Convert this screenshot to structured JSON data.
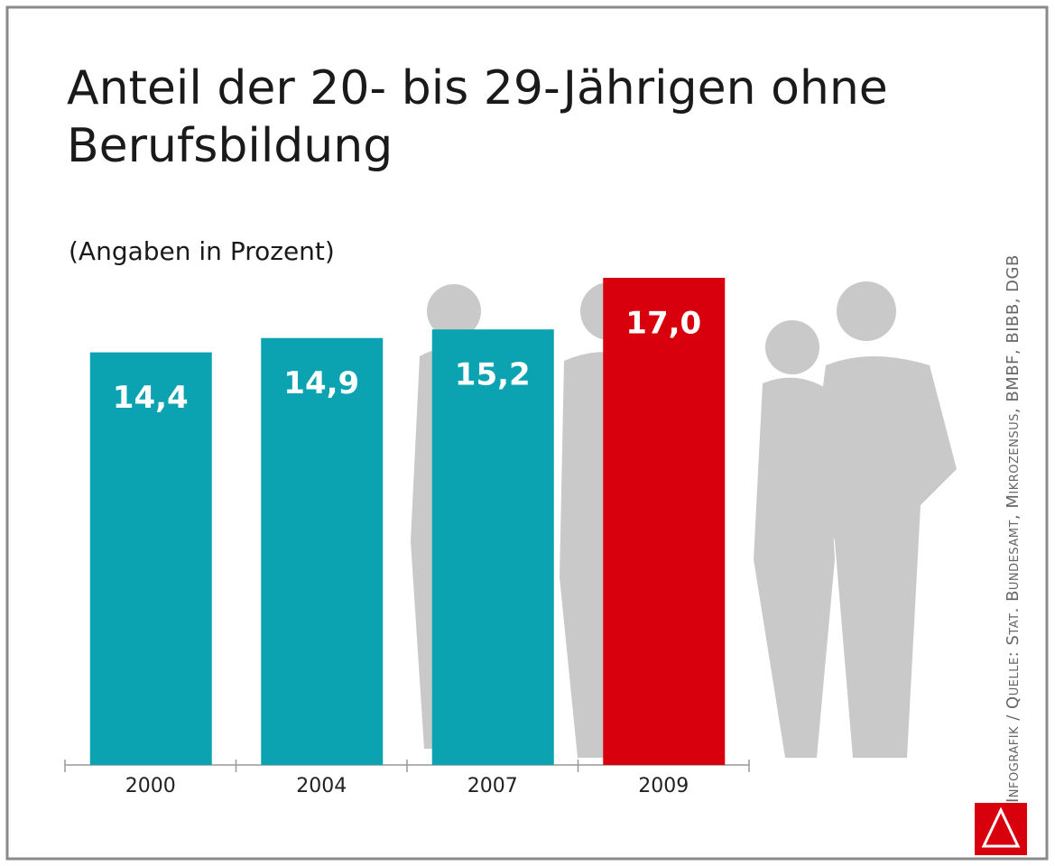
{
  "chart_data": {
    "type": "bar",
    "title": "Anteil der 20- bis 29-Jährigen ohne Berufsbildung",
    "subtitle": "(Angaben in Prozent)",
    "source": "Infografik / Quelle: Stat. Bundesamt, Mikrozensus, BMBF, BIBB, DGB",
    "categories": [
      "2000",
      "2004",
      "2007",
      "2009"
    ],
    "values": [
      14.4,
      14.9,
      15.2,
      17.0
    ],
    "value_labels": [
      "14,4",
      "14,9",
      "15,2",
      "17,0"
    ],
    "colors": [
      "#0ba3b1",
      "#0ba3b1",
      "#0ba3b1",
      "#d9000d"
    ]
  }
}
